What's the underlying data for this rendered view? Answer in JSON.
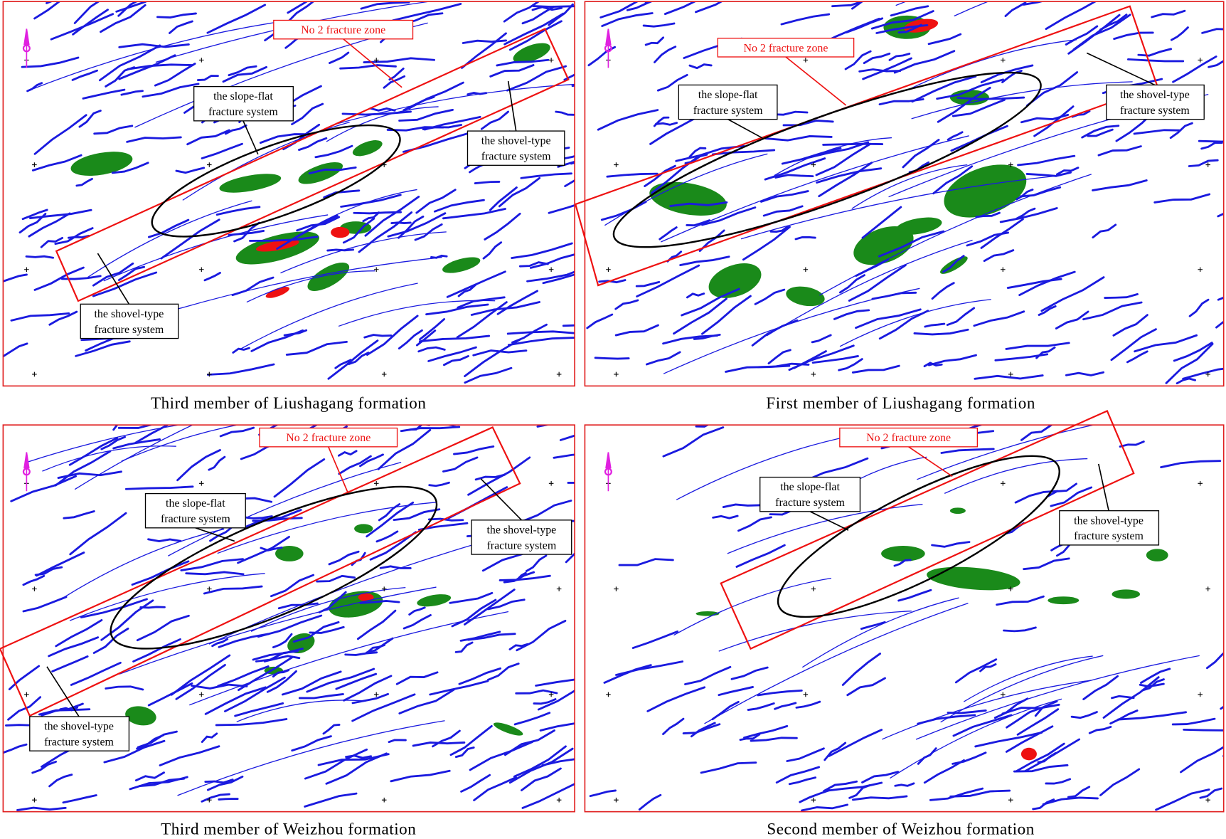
{
  "panels": [
    {
      "caption": "Third member of Liushagang formation",
      "labels": [
        [
          "No 2 fracture zone"
        ],
        [
          "the slope-flat",
          "fracture system"
        ],
        [
          "the shovel-type",
          "fracture system"
        ],
        [
          "the shovel-type",
          "fracture system"
        ]
      ]
    },
    {
      "caption": "First member of Liushagang formation",
      "labels": [
        [
          "No 2 fracture zone"
        ],
        [
          "the slope-flat",
          "fracture system"
        ],
        [
          "the shovel-type",
          "fracture system"
        ]
      ]
    },
    {
      "caption": "Third member of Weizhou formation",
      "labels": [
        [
          "No 2 fracture zone"
        ],
        [
          "the slope-flat",
          "fracture system"
        ],
        [
          "the shovel-type",
          "fracture system"
        ],
        [
          "the shovel-type",
          "fracture system"
        ]
      ]
    },
    {
      "caption": "Second member of Weizhou formation",
      "labels": [
        [
          "No 2 fracture zone"
        ],
        [
          "the slope-flat",
          "fracture system"
        ],
        [
          "the shovel-type",
          "fracture system"
        ]
      ]
    }
  ]
}
